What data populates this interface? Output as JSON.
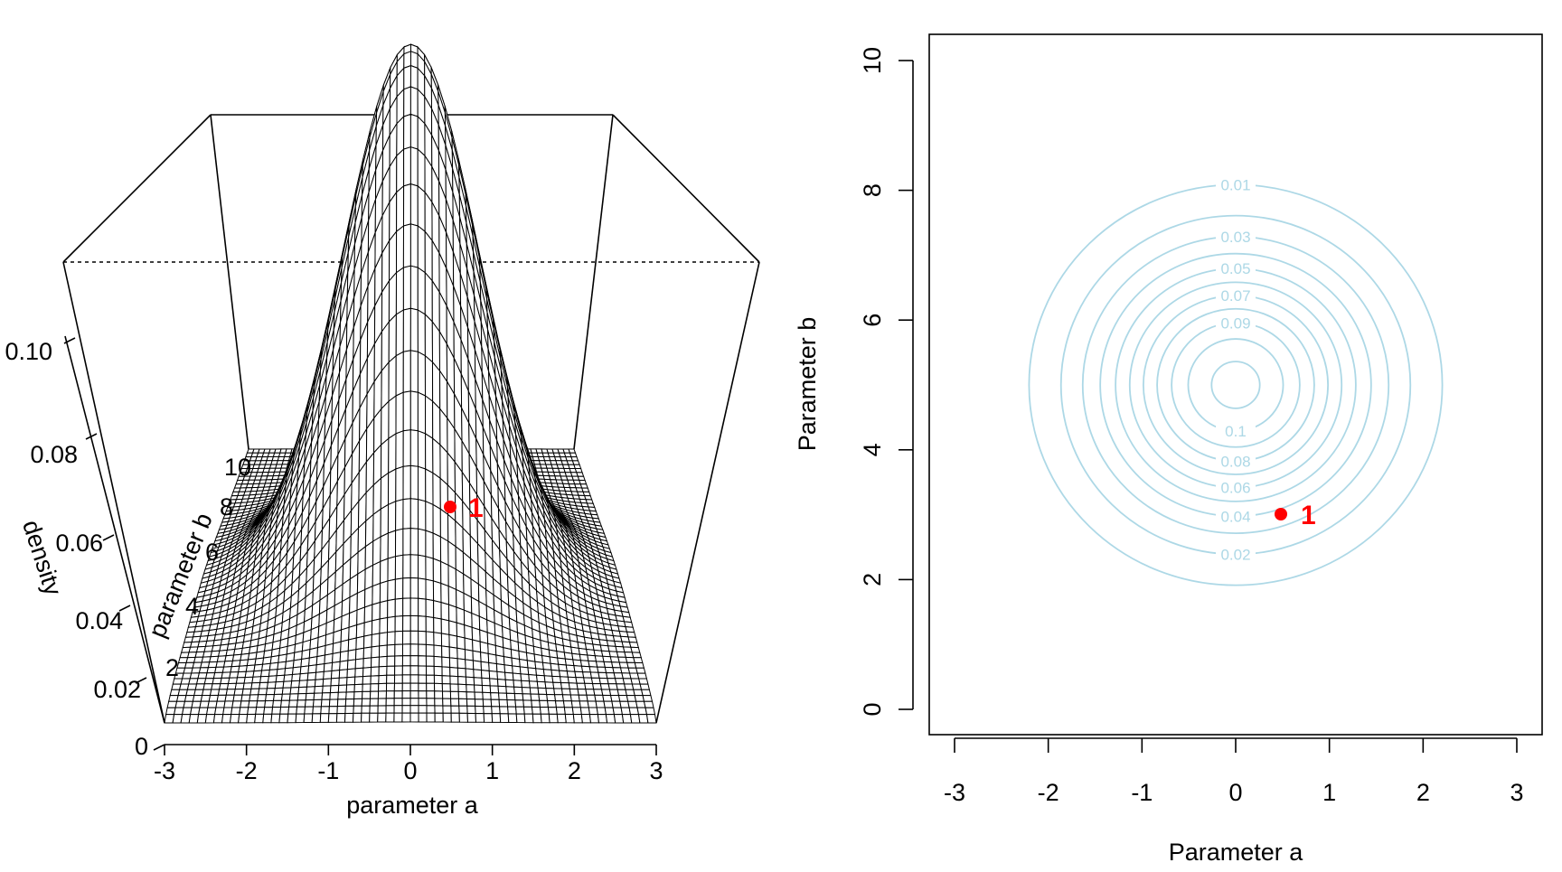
{
  "charts": [
    {
      "type": "surface3d",
      "title": "",
      "xlabel": "parameter a",
      "ylabel": "parameter b",
      "zlabel": "density",
      "xlim": [
        -3,
        3
      ],
      "ylim": [
        0,
        10
      ],
      "zlim": [
        0,
        0.113
      ],
      "x_ticks": [
        "-3",
        "-2",
        "-1",
        "0",
        "1",
        "2",
        "3"
      ],
      "y_ticks": [
        "2",
        "4",
        "6",
        "8",
        "10"
      ],
      "z_ticks": [
        "0",
        "0.02",
        "0.04",
        "0.06",
        "0.08",
        "0.10"
      ],
      "surface": {
        "distribution": "bivariate normal",
        "mean_a": 0,
        "mean_b": 5,
        "sd_a": 1,
        "sd_b": 1.4,
        "peak_density": 0.113
      },
      "grid_lines": 60,
      "point": {
        "a": 0.5,
        "b": 3,
        "label": "1",
        "color": "#ff0000"
      }
    },
    {
      "type": "contour",
      "title": "",
      "xlabel": "Parameter a",
      "ylabel": "Parameter b",
      "xlim": [
        -3,
        3
      ],
      "ylim": [
        0,
        10
      ],
      "x_ticks": [
        "-3",
        "-2",
        "-1",
        "0",
        "1",
        "2",
        "3"
      ],
      "y_ticks": [
        "0",
        "2",
        "4",
        "6",
        "8",
        "10"
      ],
      "contour_color": "#add8e6",
      "center": {
        "a": 0,
        "b": 5
      },
      "levels": [
        "0.01",
        "0.02",
        "0.03",
        "0.04",
        "0.05",
        "0.06",
        "0.07",
        "0.08",
        "0.09",
        "0.1",
        "0.11"
      ],
      "level_labels_upper": [
        "0.01",
        "0.03",
        "0.05",
        "0.07",
        "0.09"
      ],
      "level_labels_lower": [
        "0.1",
        "0.08",
        "0.06",
        "0.04",
        "0.02"
      ],
      "point": {
        "a": 0.5,
        "b": 3,
        "label": "1",
        "color": "#ff0000"
      }
    }
  ]
}
